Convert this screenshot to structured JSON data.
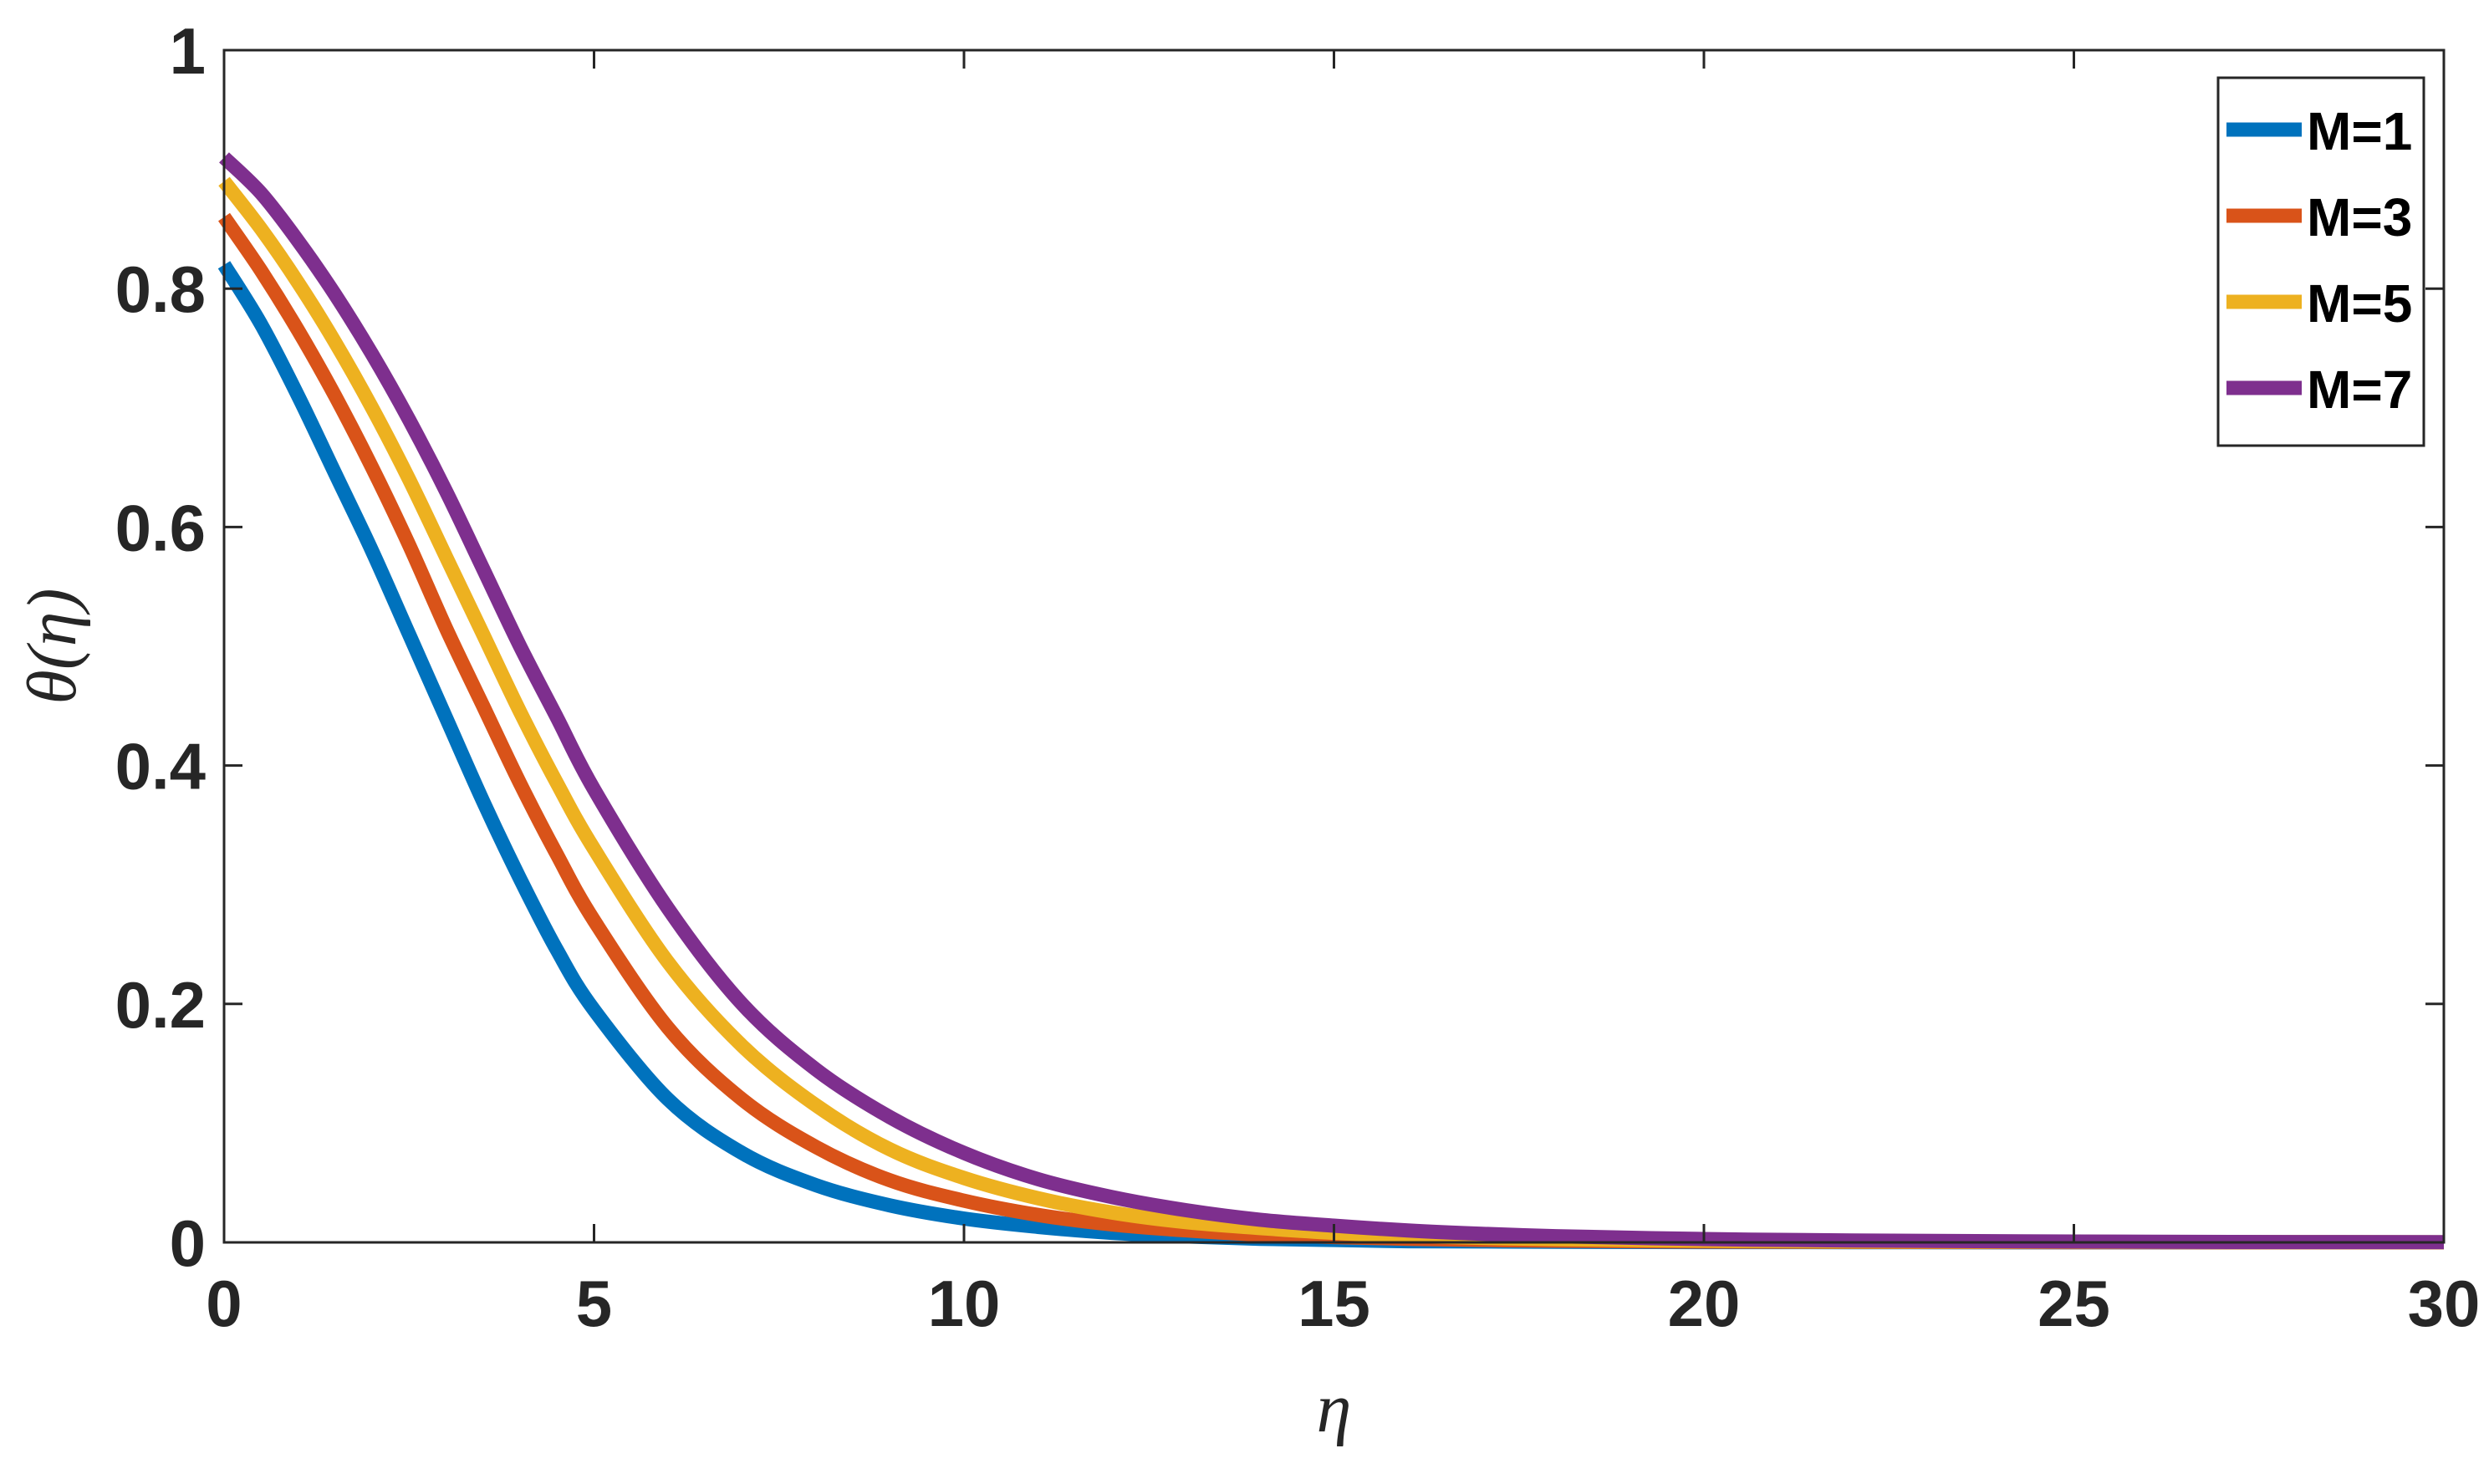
{
  "chart_data": {
    "type": "line",
    "xlabel": "η",
    "ylabel": "θ(η)",
    "xlim": [
      0,
      30
    ],
    "ylim": [
      0,
      1
    ],
    "xticks": [
      0,
      5,
      10,
      15,
      20,
      25,
      30
    ],
    "xtick_labels": [
      "0",
      "5",
      "10",
      "15",
      "20",
      "25",
      "30"
    ],
    "yticks": [
      0,
      0.2,
      0.4,
      0.6,
      0.8,
      1
    ],
    "ytick_labels": [
      "0",
      "0.2",
      "0.4",
      "0.6",
      "0.8",
      "1"
    ],
    "grid": false,
    "legend_position": "top-right",
    "x": [
      0,
      0.5,
      1,
      1.5,
      2,
      2.5,
      3,
      3.5,
      4,
      4.5,
      5,
      6,
      7,
      8,
      9,
      10,
      11,
      12,
      13,
      14,
      15,
      16,
      17,
      18,
      20,
      22,
      25,
      28,
      30
    ],
    "series": [
      {
        "name": "M=1",
        "color": "#0072BD",
        "values": [
          0.82,
          0.77,
          0.71,
          0.645,
          0.58,
          0.51,
          0.44,
          0.37,
          0.305,
          0.245,
          0.195,
          0.12,
          0.075,
          0.048,
          0.031,
          0.02,
          0.013,
          0.008,
          0.005,
          0.003,
          0.002,
          0.001,
          0.0008,
          0.0005,
          0.0003,
          0.0002,
          0.0001,
          0.0,
          0.0
        ]
      },
      {
        "name": "M=3",
        "color": "#D95319",
        "values": [
          0.86,
          0.815,
          0.765,
          0.71,
          0.65,
          0.585,
          0.515,
          0.45,
          0.385,
          0.325,
          0.27,
          0.18,
          0.12,
          0.08,
          0.052,
          0.035,
          0.023,
          0.015,
          0.01,
          0.0065,
          0.0045,
          0.003,
          0.002,
          0.0014,
          0.0007,
          0.0004,
          0.0002,
          0.0001,
          0.0
        ]
      },
      {
        "name": "M=5",
        "color": "#EDB120",
        "values": [
          0.89,
          0.85,
          0.805,
          0.755,
          0.7,
          0.64,
          0.575,
          0.51,
          0.445,
          0.385,
          0.33,
          0.235,
          0.165,
          0.115,
          0.078,
          0.054,
          0.037,
          0.025,
          0.017,
          0.012,
          0.008,
          0.0055,
          0.0038,
          0.0027,
          0.0014,
          0.0008,
          0.0004,
          0.0002,
          0.0001
        ]
      },
      {
        "name": "M=7",
        "color": "#7E2F8E",
        "values": [
          0.91,
          0.88,
          0.84,
          0.795,
          0.745,
          0.69,
          0.63,
          0.565,
          0.5,
          0.44,
          0.38,
          0.28,
          0.2,
          0.145,
          0.105,
          0.075,
          0.053,
          0.038,
          0.027,
          0.019,
          0.014,
          0.01,
          0.0072,
          0.0052,
          0.0028,
          0.0016,
          0.0007,
          0.0003,
          0.0002
        ]
      }
    ]
  }
}
